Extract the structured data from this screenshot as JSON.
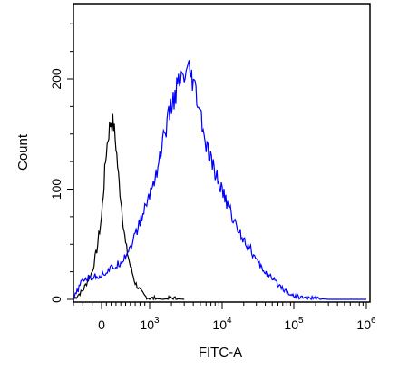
{
  "chart_data": {
    "type": "line",
    "title": "",
    "xlabel": "FITC-A",
    "ylabel": "Count",
    "x_scale": "biexponential",
    "ylim": [
      0,
      250
    ],
    "grid": false,
    "x_tick_labels": [
      {
        "value": 0,
        "label": "0"
      },
      {
        "value": 1000,
        "label": "10",
        "exp": "3"
      },
      {
        "value": 10000,
        "label": "10",
        "exp": "4"
      },
      {
        "value": 100000,
        "label": "10",
        "exp": "5"
      },
      {
        "value": 1000000,
        "label": "10",
        "exp": "6"
      }
    ],
    "y_tick_labels": [
      {
        "value": 0,
        "label": "0"
      },
      {
        "value": 100,
        "label": "100"
      },
      {
        "value": 200,
        "label": "200"
      }
    ],
    "series": [
      {
        "color": "#000000",
        "x": [
          -300,
          -200,
          -100,
          -50,
          0,
          50,
          100,
          150,
          200,
          250,
          300,
          350,
          400,
          450,
          500,
          600,
          700,
          800,
          900,
          1000,
          1200,
          1500,
          2000,
          3000
        ],
        "y": [
          0,
          8,
          25,
          45,
          75,
          105,
          135,
          152,
          163,
          158,
          140,
          112,
          92,
          70,
          50,
          30,
          15,
          8,
          3,
          1,
          1,
          0,
          1,
          0
        ]
      },
      {
        "color": "#0000ff",
        "x": [
          -300,
          -200,
          -100,
          0,
          100,
          200,
          300,
          400,
          500,
          600,
          700,
          800,
          900,
          1000,
          1300,
          1600,
          2000,
          2500,
          3000,
          3500,
          4000,
          5000,
          6000,
          8000,
          10000,
          13000,
          16000,
          20000,
          25000,
          32000,
          40000,
          50000,
          65000,
          80000,
          100000,
          150000,
          200000,
          300000,
          500000,
          1000000
        ],
        "y": [
          0,
          18,
          20,
          22,
          25,
          28,
          30,
          34,
          40,
          48,
          58,
          70,
          82,
          95,
          120,
          150,
          175,
          195,
          200,
          205,
          195,
          168,
          138,
          115,
          98,
          80,
          65,
          55,
          45,
          32,
          25,
          18,
          12,
          7,
          3,
          1,
          1,
          0,
          0,
          0
        ]
      }
    ]
  }
}
